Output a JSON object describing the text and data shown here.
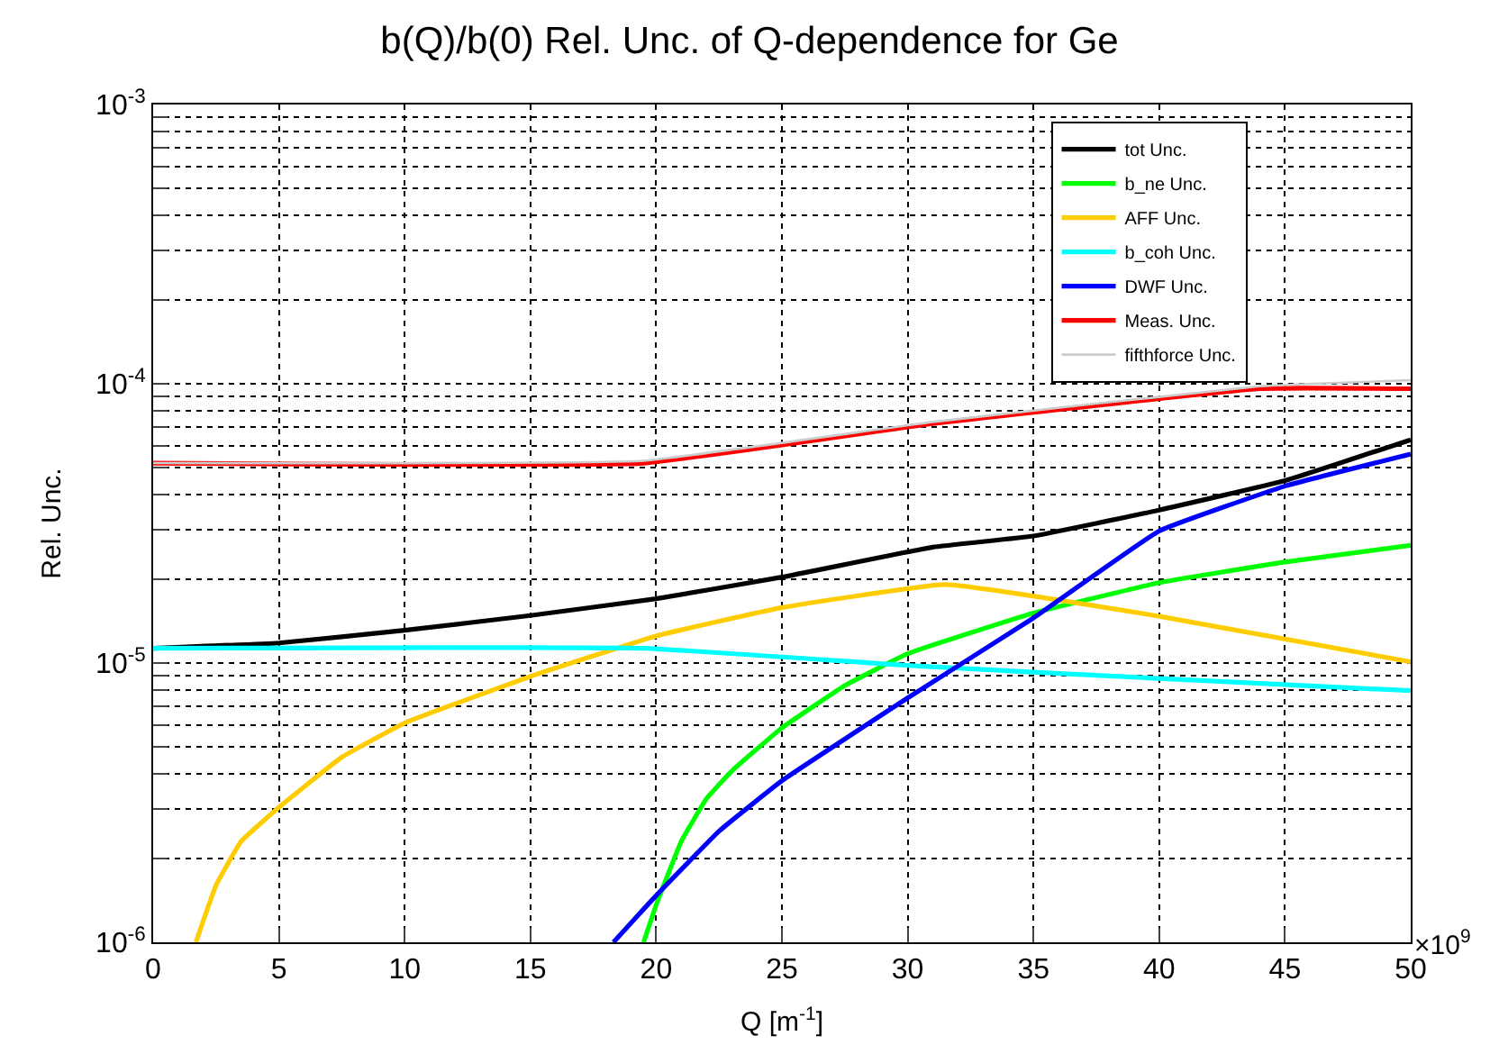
{
  "chart_data": {
    "type": "line",
    "title": "b(Q)/b(0) Rel. Unc. of Q-dependence for Ge",
    "xlabel": "Q [m$^{-1}$]",
    "ylabel": "Rel. Unc.",
    "annotations": [
      "×10$^{9}$"
    ],
    "log": "y",
    "grid": true,
    "legend": "top right",
    "marker": "none",
    "line_style": "solid",
    "xlim": [
      0,
      50
    ],
    "xticks": [
      0,
      5,
      10,
      15,
      20,
      25,
      30,
      35,
      40,
      45,
      50
    ],
    "ylim": [
      1e-06,
      0.001
    ],
    "yticks": [
      {
        "value": 1e-06,
        "label": "10$^{-6}$"
      },
      {
        "value": 2e-06,
        "label": null
      },
      {
        "value": 3e-06,
        "label": null
      },
      {
        "value": 4e-06,
        "label": null
      },
      {
        "value": 5e-06,
        "label": null
      },
      {
        "value": 6e-06,
        "label": null
      },
      {
        "value": 7e-06,
        "label": null
      },
      {
        "value": 8e-06,
        "label": null
      },
      {
        "value": 9e-06,
        "label": null
      },
      {
        "value": 1e-05,
        "label": "10$^{-5}$"
      },
      {
        "value": 2e-05,
        "label": null
      },
      {
        "value": 3e-05,
        "label": null
      },
      {
        "value": 4e-05,
        "label": null
      },
      {
        "value": 5e-05,
        "label": null
      },
      {
        "value": 6e-05,
        "label": null
      },
      {
        "value": 7e-05,
        "label": null
      },
      {
        "value": 8e-05,
        "label": null
      },
      {
        "value": 9e-05,
        "label": null
      },
      {
        "value": 0.0001,
        "label": "10$^{-4}$"
      },
      {
        "value": 0.0002,
        "label": null
      },
      {
        "value": 0.0003,
        "label": null
      },
      {
        "value": 0.0004,
        "label": null
      },
      {
        "value": 0.0005,
        "label": null
      },
      {
        "value": 0.0006,
        "label": null
      },
      {
        "value": 0.0007,
        "label": null
      },
      {
        "value": 0.0008,
        "label": null
      },
      {
        "value": 0.0009,
        "label": null
      },
      {
        "value": 0.001,
        "label": "10$^{-3}$"
      }
    ],
    "series": [
      {
        "name": "tot Unc.",
        "color": "#000000",
        "x": [
          0,
          5,
          10,
          15,
          20,
          25,
          31,
          35,
          40,
          45,
          50
        ],
        "values": [
          1.13e-05,
          1.18e-05,
          1.31e-05,
          1.48e-05,
          1.7e-05,
          2.03e-05,
          2.6e-05,
          2.85e-05,
          3.53e-05,
          4.5e-05,
          6.3e-05
        ]
      },
      {
        "name": "b_ne Unc.",
        "color": "#00ff00",
        "x": [
          19.5,
          20,
          21,
          22,
          23,
          25,
          27.5,
          30,
          35,
          40,
          45,
          50
        ],
        "values": [
          1e-06,
          1.36e-06,
          2.3e-06,
          3.27e-06,
          4.1e-06,
          5.86e-06,
          8.3e-06,
          1.08e-05,
          1.51e-05,
          1.94e-05,
          2.3e-05,
          2.64e-05
        ]
      },
      {
        "name": "AFF Unc.",
        "color": "#ffcc00",
        "x": [
          1.7,
          2.5,
          3.5,
          5,
          7.5,
          10,
          15,
          20,
          25,
          31.5,
          40,
          50
        ],
        "values": [
          1e-06,
          1.6e-06,
          2.3e-06,
          3.04e-06,
          4.6e-06,
          6.1e-06,
          8.95e-06,
          1.25e-05,
          1.58e-05,
          1.91e-05,
          1.47e-05,
          1.01e-05
        ]
      },
      {
        "name": "b_coh Unc.",
        "color": "#00ffff",
        "x": [
          0,
          19.5,
          30,
          40,
          50
        ],
        "values": [
          1.13e-05,
          1.13e-05,
          9.8e-06,
          8.8e-06,
          7.96e-06
        ]
      },
      {
        "name": "DWF Unc.",
        "color": "#0000ff",
        "x": [
          18.3,
          20,
          22.5,
          25,
          30,
          35,
          40,
          45,
          50
        ],
        "values": [
          1e-06,
          1.47e-06,
          2.5e-06,
          3.79e-06,
          7.5e-06,
          1.45e-05,
          2.97e-05,
          4.3e-05,
          5.6e-05
        ]
      },
      {
        "name": "Meas. Unc.",
        "color": "#ff0000",
        "x": [
          0,
          19.5,
          31,
          44,
          50
        ],
        "values": [
          5.2e-05,
          5.2e-05,
          7.2e-05,
          9.6e-05,
          9.6e-05
        ]
      },
      {
        "name": "fifthforce Unc.",
        "color": "#cccccc",
        "x": [
          0,
          19.5,
          31,
          44,
          50
        ],
        "values": [
          5.2e-05,
          5.3e-05,
          7.3e-05,
          9.8e-05,
          0.000103
        ]
      }
    ]
  }
}
